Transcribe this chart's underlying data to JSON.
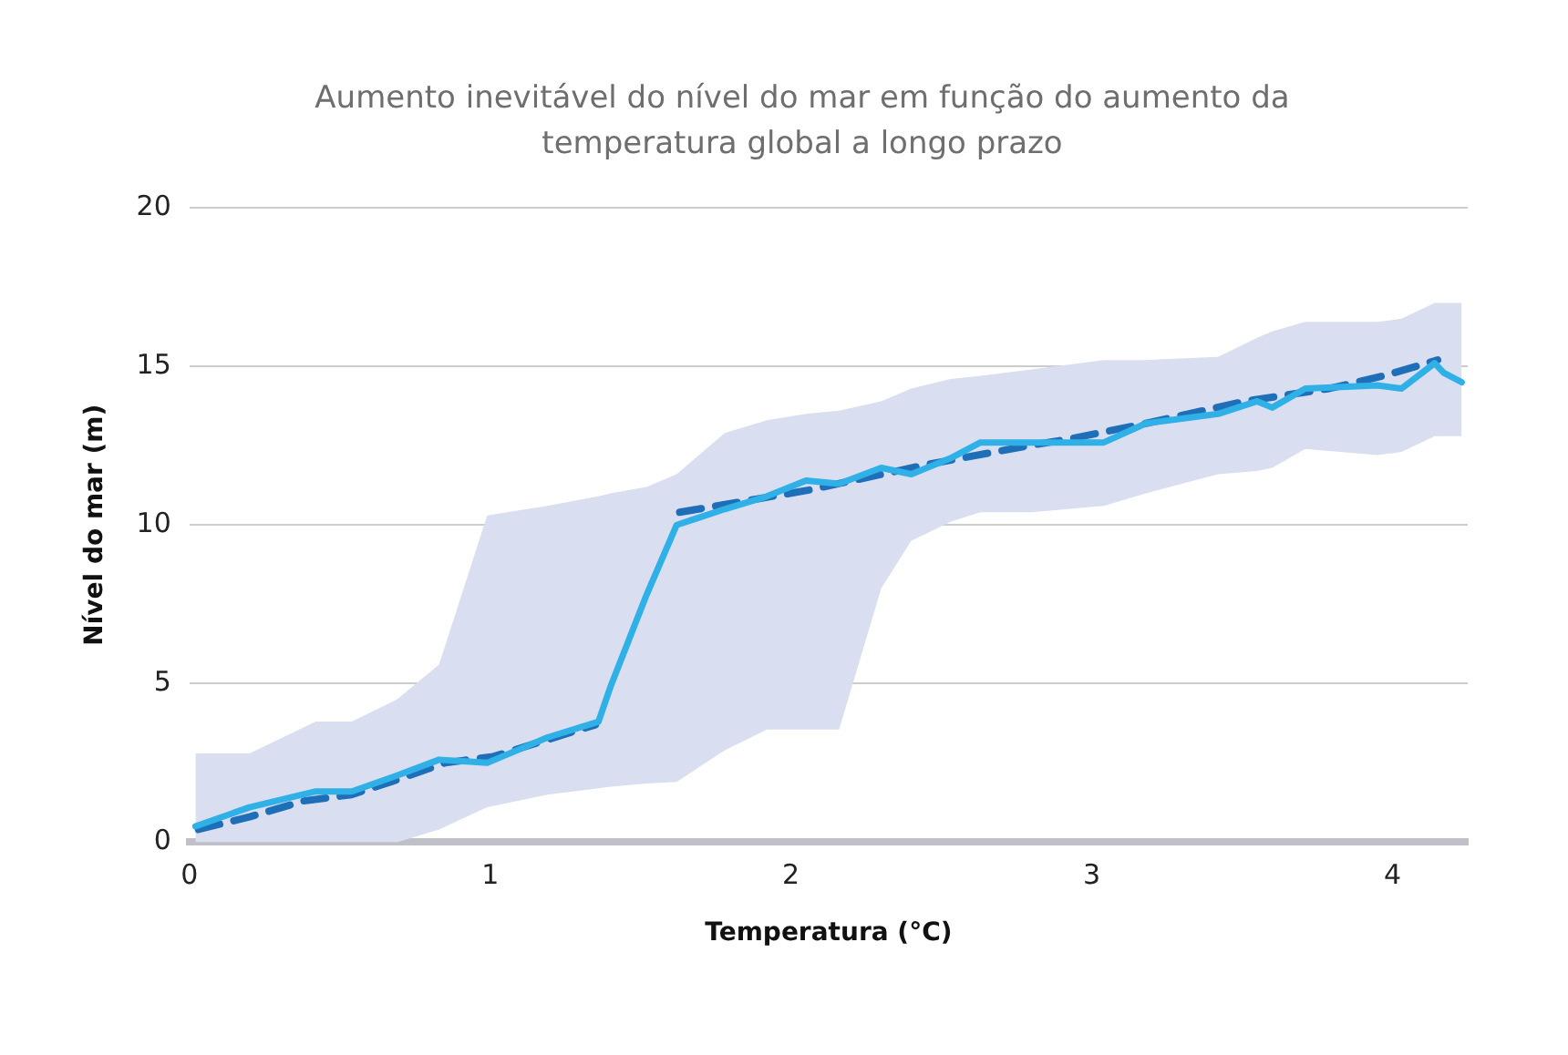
{
  "chart_data": {
    "type": "line",
    "title": "Aumento inevitável do nível do mar em função do aumento da temperatura global a longo prazo",
    "xlabel": "Temperatura (°C)",
    "ylabel": "Nível do mar (m)",
    "xlim": [
      0,
      4.25
    ],
    "xticks": [
      0,
      1,
      2,
      3,
      4
    ],
    "ylim": [
      0,
      20
    ],
    "yticks": [
      0,
      5,
      10,
      15,
      20
    ],
    "grid": "y",
    "legend": false,
    "marker": "none",
    "series": [
      {
        "color": "#2fb0e6",
        "line_style": "solid",
        "x": [
          0.02,
          0.2,
          0.42,
          0.54,
          0.69,
          0.83,
          0.99,
          1.19,
          1.36,
          1.4,
          1.52,
          1.62,
          1.78,
          1.92,
          2.05,
          2.16,
          2.3,
          2.4,
          2.53,
          2.63,
          2.8,
          3.04,
          3.18,
          3.42,
          3.55,
          3.6,
          3.71,
          3.95,
          4.03,
          4.14,
          4.17,
          4.23
        ],
        "values": [
          0.5,
          1.1,
          1.6,
          1.6,
          2.1,
          2.6,
          2.5,
          3.3,
          3.8,
          4.9,
          7.8,
          10,
          10.5,
          10.9,
          11.4,
          11.3,
          11.8,
          11.6,
          12.1,
          12.6,
          12.6,
          12.6,
          13.2,
          13.5,
          13.9,
          13.7,
          14.3,
          14.4,
          14.3,
          15.1,
          14.8,
          14.5
        ],
        "lower": [
          0,
          0,
          0,
          0,
          0,
          0.4,
          1.1,
          1.5,
          1.7,
          1.75,
          1.85,
          1.9,
          2.9,
          3.55,
          3.55,
          3.55,
          8,
          9.5,
          10.1,
          10.4,
          10.4,
          10.6,
          11,
          11.6,
          11.7,
          11.8,
          12.4,
          12.2,
          12.3,
          12.8,
          12.8,
          12.8
        ],
        "upper": [
          2.8,
          2.8,
          3.8,
          3.8,
          4.5,
          5.6,
          10.3,
          10.6,
          10.9,
          11,
          11.2,
          11.6,
          12.9,
          13.3,
          13.5,
          13.6,
          13.9,
          14.3,
          14.6,
          14.7,
          14.9,
          15.2,
          15.2,
          15.3,
          15.9,
          16.1,
          16.4,
          16.4,
          16.5,
          17,
          17,
          17
        ]
      },
      {
        "color": "#1f6fb8",
        "line_style": "dashed",
        "x": [
          0.03,
          0.2,
          0.38,
          0.54,
          0.67,
          0.85,
          1.01,
          1.35,
          1.45,
          1.63,
          2.06,
          2.45,
          2.79,
          2.92,
          3.18,
          3.51,
          3.79,
          3.97,
          4.15
        ],
        "values": [
          0.4,
          0.8,
          1.3,
          1.5,
          1.9,
          2.5,
          2.7,
          3.7,
          null,
          10.4,
          11.1,
          11.9,
          12.5,
          12.7,
          13.2,
          13.9,
          14.3,
          14.7,
          15.2
        ]
      }
    ]
  }
}
